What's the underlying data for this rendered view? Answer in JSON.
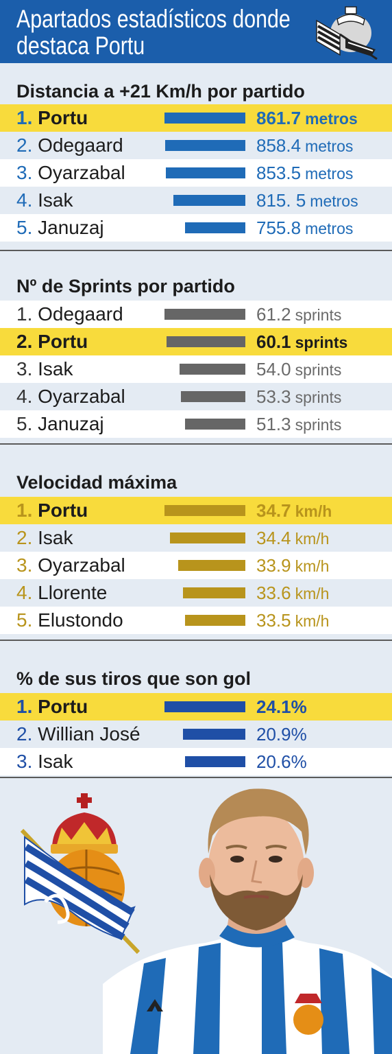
{
  "header": {
    "title_line1": "Apartados estadísticos donde",
    "title_line2": "destaca Portu"
  },
  "colors": {
    "header_bg": "#1b5eab",
    "highlight_bg": "#f8db3c",
    "section1_accent": "#1f6bb7",
    "section2_accent": "#666666",
    "section3_accent": "#b8941c",
    "section4_accent": "#1f4fa6"
  },
  "chart_data": [
    {
      "type": "bar",
      "title": "Distancia a +21 Km/h por partido",
      "unit": "metros",
      "categories": [
        "1. Portu",
        "2. Odegaard",
        "3. Oyarzabal",
        "4. Isak",
        "5. Januzaj"
      ],
      "values": [
        861.7,
        858.4,
        853.5,
        815.5,
        755.8
      ],
      "value_labels": [
        "861.7",
        "858.4",
        "853.5",
        "815. 5",
        "755.8"
      ],
      "highlight_index": 0
    },
    {
      "type": "bar",
      "title": "Nº de Sprints por partido",
      "unit": "sprints",
      "categories": [
        "1. Odegaard",
        "2. Portu",
        "3. Isak",
        "4. Oyarzabal",
        "5. Januzaj"
      ],
      "values": [
        61.2,
        60.1,
        54.0,
        53.3,
        51.3
      ],
      "value_labels": [
        "61.2",
        "60.1",
        "54.0",
        "53.3",
        "51.3"
      ],
      "highlight_index": 1
    },
    {
      "type": "bar",
      "title": "Velocidad máxima",
      "unit": "km/h",
      "categories": [
        "1. Portu",
        "2. Isak",
        "3. Oyarzabal",
        "4. Llorente",
        "5. Elustondo"
      ],
      "values": [
        34.7,
        34.4,
        33.9,
        33.6,
        33.5
      ],
      "value_labels": [
        "34.7",
        "34.4",
        "33.9",
        "33.6",
        "33.5"
      ],
      "highlight_index": 0
    },
    {
      "type": "bar",
      "title": "% de sus tiros que son gol",
      "unit": "",
      "categories": [
        "1. Portu",
        "2. Willian José",
        "3. Isak"
      ],
      "values": [
        24.1,
        20.9,
        20.6
      ],
      "value_labels": [
        "24.1%",
        "20.9%",
        "20.6%"
      ],
      "highlight_index": 0
    }
  ],
  "icons": {
    "header_logo": "real-sociedad-crest-icon",
    "bottom_logo": "real-sociedad-crest-icon",
    "player_photo": "player-photo"
  }
}
